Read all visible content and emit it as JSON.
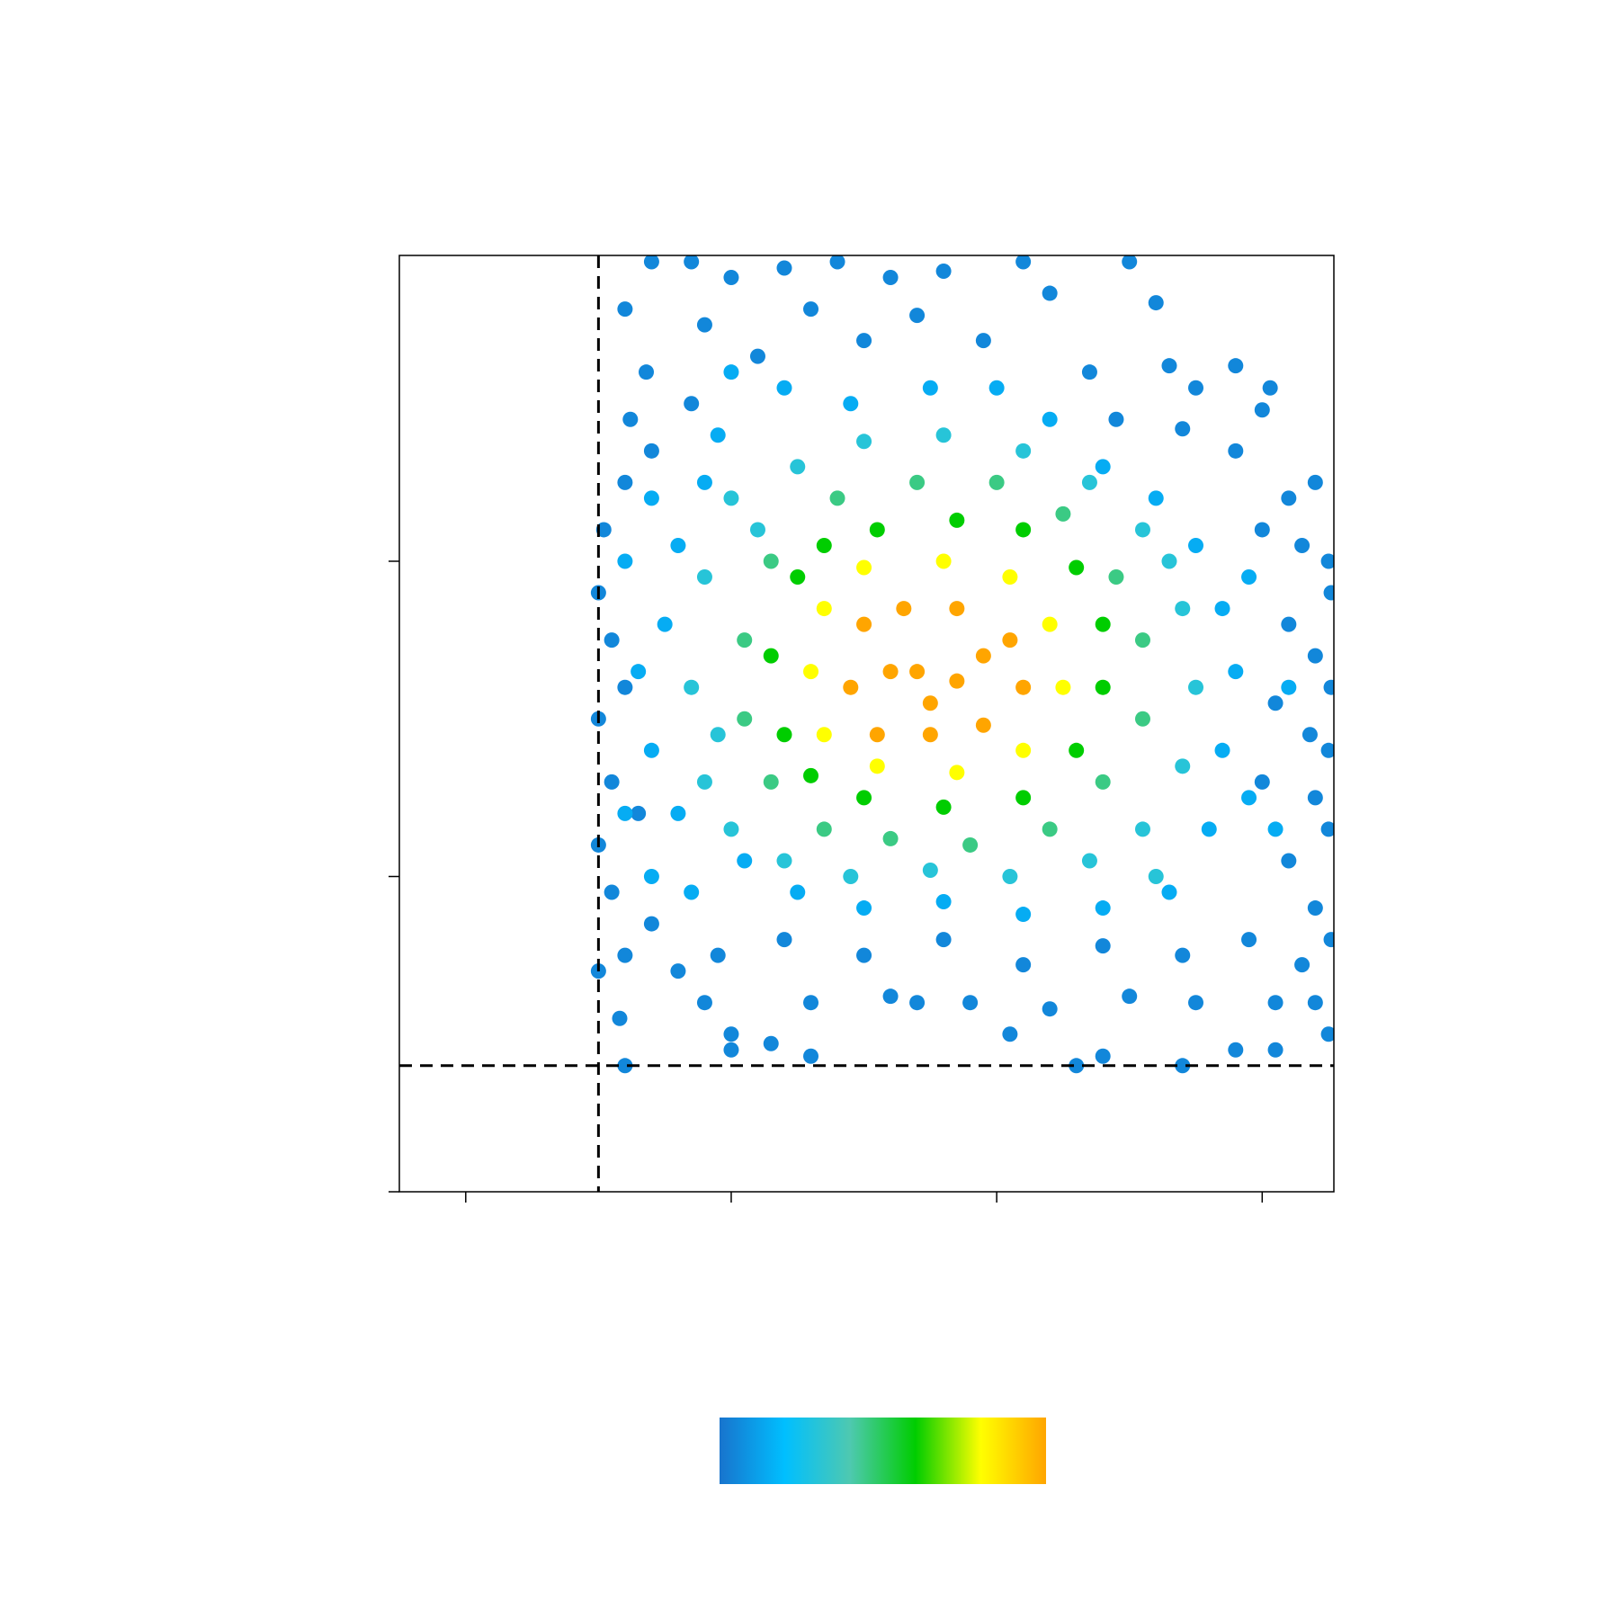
{
  "chart_data": {
    "type": "scatter",
    "xlim": [
      -0.25,
      3.27
    ],
    "ylim": [
      0,
      2.97
    ],
    "xticks": [
      0,
      1,
      2,
      3
    ],
    "yticks": [
      0,
      1,
      2
    ],
    "gates": {
      "x": 0.5,
      "y": 0.4
    },
    "colormap": [
      "#1874cd",
      "#00bfff",
      "#4ec9b0",
      "#00cd00",
      "#ffff00",
      "#ffa500"
    ],
    "series": [
      {
        "density": 0.05,
        "x": [
          0.7,
          0.85,
          1.0,
          1.2,
          1.4,
          1.6,
          1.8,
          2.1,
          2.5,
          0.6,
          0.9,
          1.3,
          1.7,
          2.2,
          2.6,
          2.65,
          0.68,
          1.1,
          1.5,
          1.95,
          2.35,
          2.75,
          2.9,
          3.0,
          3.03,
          0.62,
          0.85,
          2.45,
          2.7,
          2.9,
          3.1,
          3.2,
          0.52,
          0.6,
          0.7,
          3.0,
          3.15,
          3.25,
          3.26,
          0.5,
          0.55,
          3.1,
          3.2,
          3.26,
          0.5,
          0.6,
          3.05,
          3.18,
          3.25,
          0.55,
          0.5,
          0.65,
          3.0,
          3.2,
          3.25,
          0.55,
          0.6,
          0.5,
          0.7,
          3.1,
          3.2,
          3.26,
          0.8,
          0.95,
          1.2,
          1.5,
          1.8,
          2.1,
          2.4,
          2.7,
          2.95,
          3.15,
          0.9,
          1.0,
          1.3,
          1.6,
          1.9,
          2.2,
          2.5,
          2.75,
          3.05,
          3.2,
          1.0,
          1.15,
          1.3,
          0.6,
          2.3,
          2.4,
          2.7,
          2.9,
          3.05,
          0.58,
          1.7,
          2.05,
          3.25
        ],
        "values": [
          2.95,
          2.95,
          2.9,
          2.93,
          2.95,
          2.9,
          2.92,
          2.95,
          2.95,
          2.8,
          2.75,
          2.8,
          2.78,
          2.85,
          2.82,
          2.62,
          2.6,
          2.65,
          2.7,
          2.7,
          2.6,
          2.55,
          2.62,
          2.48,
          2.55,
          2.45,
          2.5,
          2.45,
          2.42,
          2.35,
          2.2,
          2.25,
          2.1,
          2.25,
          2.35,
          2.1,
          2.05,
          2.0,
          1.9,
          1.9,
          1.75,
          1.8,
          1.7,
          1.6,
          1.5,
          1.6,
          1.55,
          1.45,
          1.4,
          1.3,
          1.1,
          1.2,
          1.3,
          1.25,
          1.15,
          0.95,
          0.75,
          0.7,
          0.85,
          1.05,
          0.9,
          0.8,
          0.7,
          0.75,
          0.8,
          0.75,
          0.8,
          0.72,
          0.78,
          0.75,
          0.8,
          0.72,
          0.6,
          0.5,
          0.6,
          0.62,
          0.6,
          0.58,
          0.62,
          0.6,
          0.6,
          0.6,
          0.45,
          0.47,
          0.43,
          0.4,
          0.4,
          0.43,
          0.4,
          0.45,
          0.45,
          0.55,
          0.6,
          0.5,
          0.5
        ]
      },
      {
        "density": 0.15,
        "x": [
          0.7,
          0.8,
          0.75,
          0.65,
          0.7,
          0.8,
          0.7,
          0.85,
          1.0,
          1.2,
          1.45,
          1.75,
          2.0,
          2.2,
          2.4,
          2.6,
          2.75,
          2.85,
          2.9,
          2.85,
          2.8,
          2.65,
          2.4,
          2.1,
          1.8,
          1.5,
          1.25,
          1.05,
          0.95,
          0.9,
          2.95,
          2.95,
          3.1,
          3.05,
          0.6,
          0.6
        ],
        "values": [
          2.2,
          2.05,
          1.8,
          1.65,
          1.4,
          1.2,
          1.0,
          0.95,
          2.6,
          2.55,
          2.5,
          2.55,
          2.55,
          2.45,
          2.3,
          2.2,
          2.05,
          1.85,
          1.65,
          1.4,
          1.15,
          0.95,
          0.9,
          0.88,
          0.92,
          0.9,
          0.95,
          1.05,
          2.4,
          2.25,
          1.95,
          1.25,
          1.6,
          1.15,
          2.0,
          1.2
        ]
      },
      {
        "density": 0.3,
        "x": [
          1.0,
          0.9,
          0.85,
          0.9,
          1.0,
          1.2,
          1.45,
          1.75,
          2.05,
          2.35,
          2.55,
          2.7,
          2.75,
          2.7,
          2.55,
          2.35,
          2.1,
          1.8,
          1.5,
          1.25,
          1.1,
          0.95,
          2.6,
          2.65
        ],
        "values": [
          2.2,
          1.95,
          1.6,
          1.3,
          1.15,
          1.05,
          1.0,
          1.02,
          1.0,
          1.05,
          1.15,
          1.35,
          1.6,
          1.85,
          2.1,
          2.25,
          2.35,
          2.4,
          2.38,
          2.3,
          2.1,
          1.45,
          1.0,
          2.0
        ]
      },
      {
        "density": 0.45,
        "x": [
          1.15,
          1.05,
          1.05,
          1.15,
          1.35,
          1.6,
          1.9,
          2.2,
          2.4,
          2.55,
          2.55,
          2.45,
          2.25,
          2.0,
          1.7,
          1.4
        ],
        "values": [
          2.0,
          1.75,
          1.5,
          1.3,
          1.15,
          1.12,
          1.1,
          1.15,
          1.3,
          1.5,
          1.75,
          1.95,
          2.15,
          2.25,
          2.25,
          2.2
        ]
      },
      {
        "density": 0.6,
        "x": [
          1.25,
          1.15,
          1.2,
          1.3,
          1.5,
          1.8,
          2.1,
          2.3,
          2.4,
          2.4,
          2.3,
          2.1,
          1.85,
          1.55,
          1.35
        ],
        "values": [
          1.95,
          1.7,
          1.45,
          1.32,
          1.25,
          1.22,
          1.25,
          1.4,
          1.6,
          1.8,
          1.98,
          2.1,
          2.13,
          2.1,
          2.05
        ]
      },
      {
        "density": 0.8,
        "x": [
          1.35,
          1.3,
          1.35,
          1.55,
          1.85,
          2.1,
          2.25,
          2.2,
          2.05,
          1.8,
          1.5
        ],
        "values": [
          1.85,
          1.65,
          1.45,
          1.35,
          1.33,
          1.4,
          1.6,
          1.8,
          1.95,
          2.0,
          1.98
        ]
      },
      {
        "density": 1,
        "x": [
          1.5,
          1.45,
          1.55,
          1.75,
          1.95,
          2.1,
          2.05,
          1.85,
          1.65,
          1.7,
          1.85,
          1.6,
          1.95,
          1.75
        ],
        "values": [
          1.8,
          1.6,
          1.45,
          1.45,
          1.48,
          1.6,
          1.75,
          1.85,
          1.85,
          1.65,
          1.62,
          1.65,
          1.7,
          1.55
        ]
      }
    ]
  }
}
